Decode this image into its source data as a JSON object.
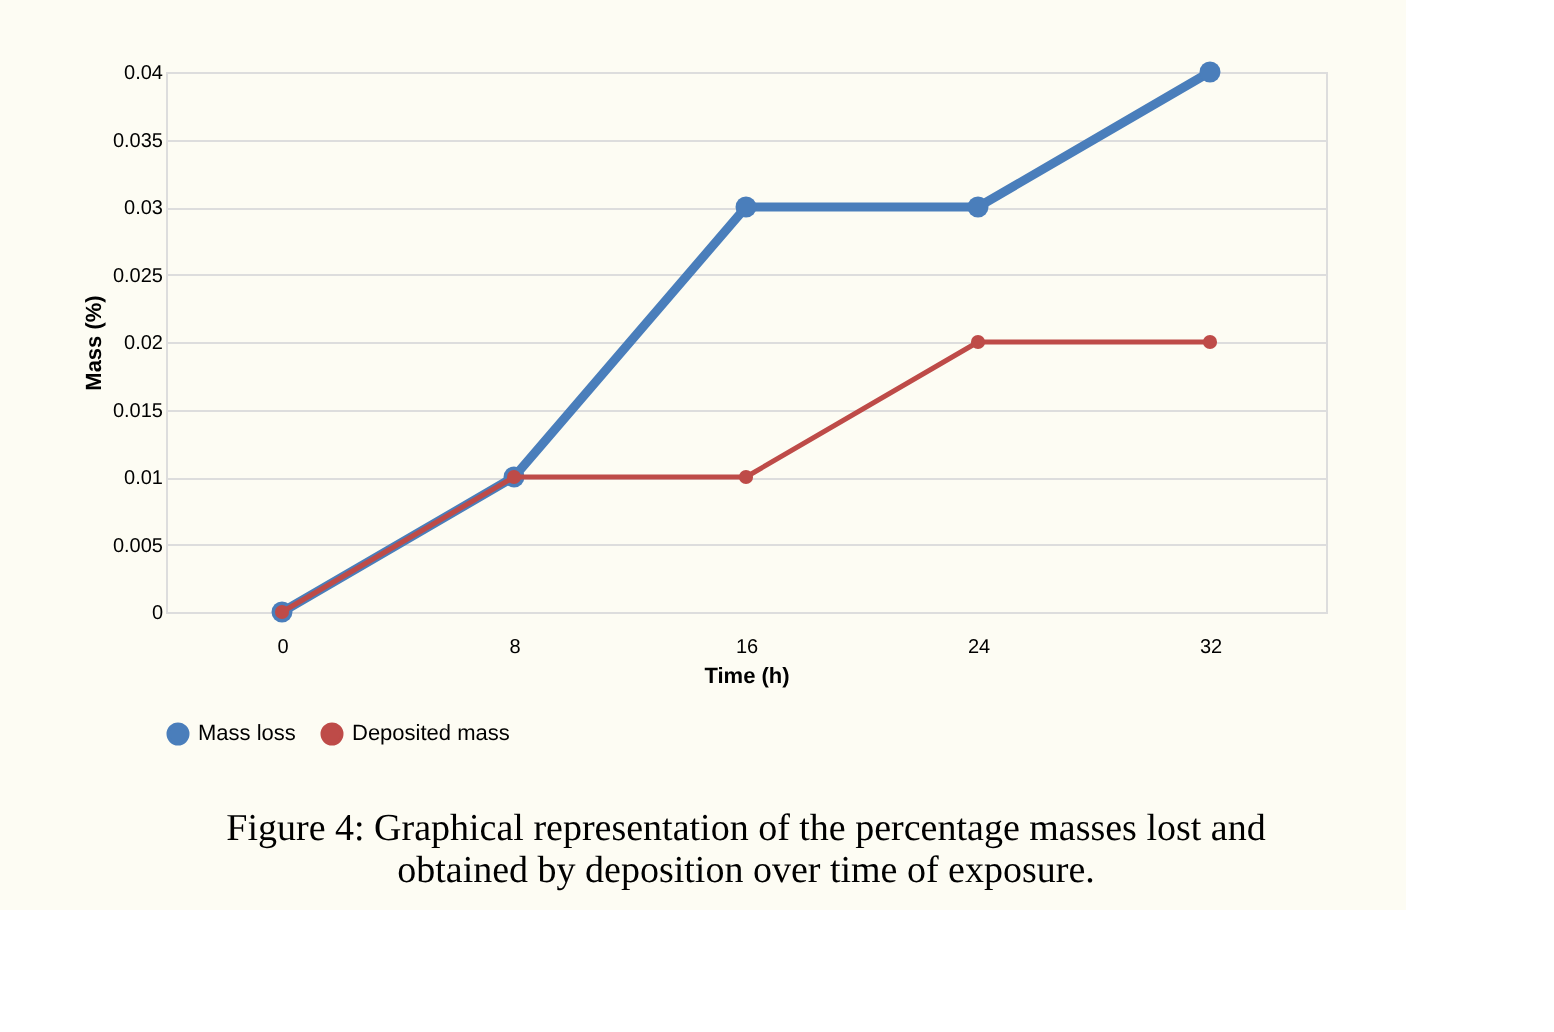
{
  "chart_data": {
    "type": "line",
    "categories": [
      "0",
      "8",
      "16",
      "24",
      "32"
    ],
    "xlabel": "Time (h)",
    "ylabel": "Mass (%)",
    "series": [
      {
        "name": "Mass loss",
        "color": "#4a7ebb",
        "values": [
          0,
          0.01,
          0.03,
          0.03,
          0.04
        ]
      },
      {
        "name": "Deposited mass",
        "color": "#be4b48",
        "values": [
          0,
          0.01,
          0.01,
          0.02,
          0.02
        ]
      }
    ],
    "ylim": [
      0,
      0.04
    ],
    "yticks": [
      0,
      0.005,
      0.01,
      0.015,
      0.02,
      0.025,
      0.03,
      0.035,
      0.04
    ],
    "grid": "y",
    "legend": "bottom",
    "marker": "circle",
    "line_style": "solid",
    "annotations": [
      "Figure 4: Graphical representation of the percentage masses lost and obtained by deposition over time of exposure."
    ]
  }
}
